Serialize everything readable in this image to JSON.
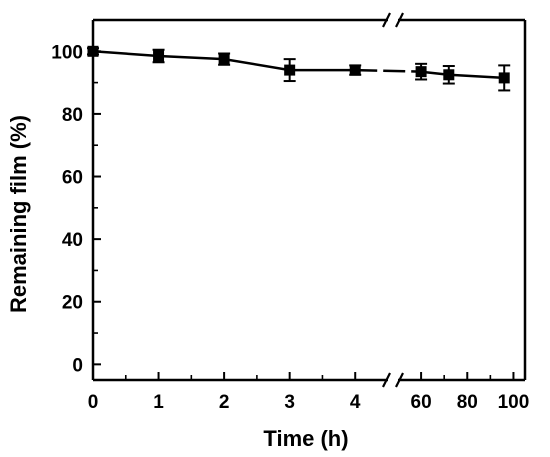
{
  "chart_data": {
    "type": "line",
    "xlabel": "Time (h)",
    "ylabel": "Remaining film (%)",
    "ylim": [
      -5,
      110
    ],
    "x_axis_break": true,
    "x_segments": [
      {
        "range": [
          0,
          4.5
        ],
        "ticks": [
          0,
          1,
          2,
          3,
          4
        ]
      },
      {
        "range": [
          50,
          105
        ],
        "ticks": [
          60,
          80,
          100
        ]
      }
    ],
    "y_ticks": [
      0,
      20,
      40,
      60,
      80,
      100
    ],
    "grid": false,
    "legend": "none",
    "series": [
      {
        "marker": "square",
        "color": "#000000",
        "points": [
          {
            "x": 0,
            "y": 100.0,
            "err": 1.0
          },
          {
            "x": 1,
            "y": 98.5,
            "err": 2.0
          },
          {
            "x": 2,
            "y": 97.5,
            "err": 1.8
          },
          {
            "x": 3,
            "y": 94.0,
            "err": 3.5
          },
          {
            "x": 4,
            "y": 94.0,
            "err": 1.5
          },
          {
            "x": 60,
            "y": 93.5,
            "err": 2.5
          },
          {
            "x": 72,
            "y": 92.5,
            "err": 2.8
          },
          {
            "x": 96,
            "y": 91.5,
            "err": 4.0
          }
        ]
      }
    ]
  }
}
